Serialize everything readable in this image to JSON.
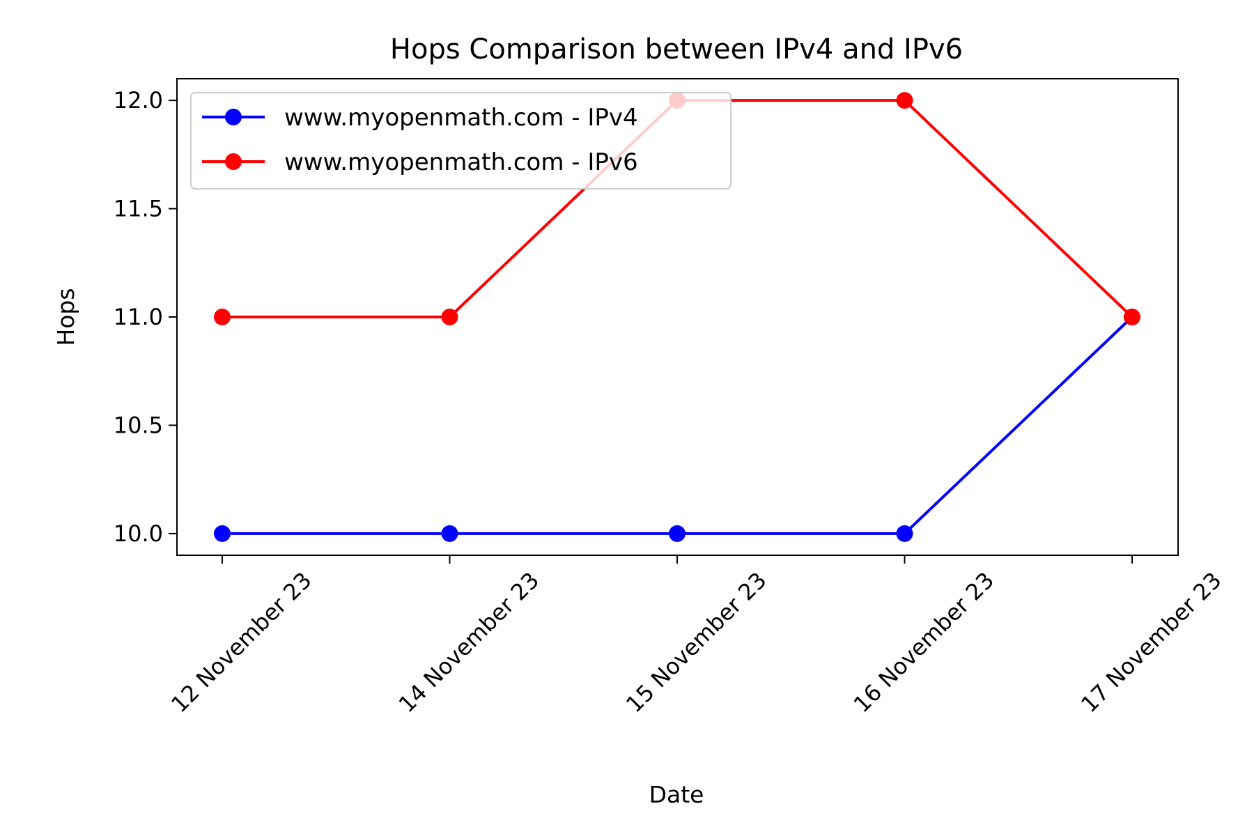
{
  "chart_data": {
    "type": "line",
    "title": "Hops Comparison between IPv4 and IPv6",
    "xlabel": "Date",
    "ylabel": "Hops",
    "categories": [
      "12 November 23",
      "14 November 23",
      "15 November 23",
      "16 November 23",
      "17 November 23"
    ],
    "ylim": [
      9.9,
      12.1
    ],
    "yticks": [
      "10.0",
      "10.5",
      "11.0",
      "11.5",
      "12.0"
    ],
    "grid": false,
    "legend_position": "upper-left",
    "series": [
      {
        "name": "www.myopenmath.com - IPv4",
        "color": "#0000ff",
        "marker": "circle",
        "values": [
          10,
          10,
          10,
          10,
          11
        ]
      },
      {
        "name": "www.myopenmath.com - IPv6",
        "color": "#ff0000",
        "marker": "circle",
        "values": [
          11,
          11,
          12,
          12,
          11
        ]
      }
    ]
  }
}
